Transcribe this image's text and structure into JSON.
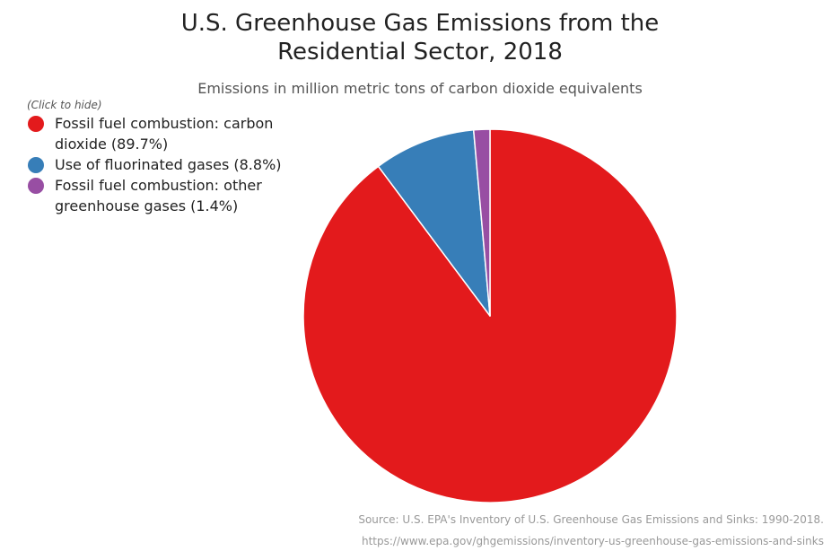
{
  "chart_data": {
    "type": "pie",
    "title": "U.S. Greenhouse Gas Emissions from the\nResidential Sector, 2018",
    "subtitle": "Emissions in million metric tons of carbon dioxide equivalents",
    "legend_hint": "(Click to hide)",
    "legend_placement": "top-left",
    "slices": [
      {
        "label": "Fossil fuel combustion: carbon dioxide (89.7%)",
        "value": 89.7,
        "color": "#e31a1c"
      },
      {
        "label": "Use of fluorinated gases (8.8%)",
        "value": 8.8,
        "color": "#377eb8"
      },
      {
        "label": "Fossil fuel combustion: other greenhouse gases (1.4%)",
        "value": 1.4,
        "color": "#984ea3"
      }
    ],
    "credits": {
      "source": "Source: U.S. EPA's Inventory of U.S. Greenhouse Gas Emissions and Sinks: 1990-2018.",
      "url": "https://www.epa.gov/ghgemissions/inventory-us-greenhouse-gas-emissions-and-sinks"
    }
  }
}
